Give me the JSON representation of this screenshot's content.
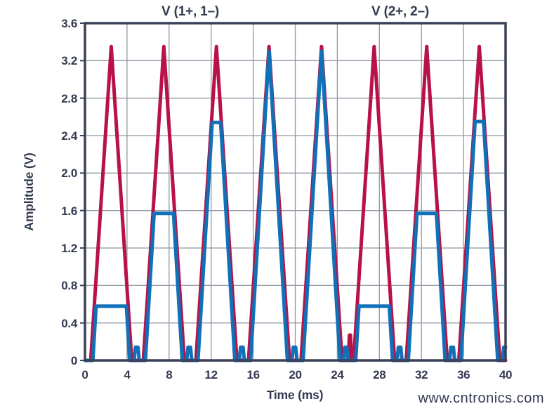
{
  "figure": {
    "watermark": "www.cntronics.com",
    "colors": {
      "background": "#ffffff",
      "text": "#333a52",
      "grid": "#9097a6",
      "border": "#3a4156",
      "watermark": "#c9eab9"
    }
  },
  "chart_data": {
    "type": "line",
    "xlabel": "Time (ms)",
    "ylabel": "Amplitude (V)",
    "xlim": [
      0,
      40
    ],
    "ylim": [
      0,
      3.6
    ],
    "x_tick_values": [
      0,
      4,
      8,
      12,
      16,
      20,
      24,
      28,
      32,
      36,
      40
    ],
    "xticks": [
      "0",
      "4",
      "8",
      "12",
      "16",
      "20",
      "24",
      "28",
      "32",
      "36",
      "40"
    ],
    "yticks": [
      "3.6",
      "3.2",
      "2.8",
      "2.4",
      "2.0",
      "1.6",
      "1.2",
      "0.8",
      "0.4",
      "0"
    ],
    "grid": {
      "x_lines": [
        4,
        8,
        12,
        16,
        20,
        24,
        28,
        32,
        36
      ],
      "y_lines": [
        0.4,
        0.8,
        1.2,
        1.6,
        2.0,
        2.4,
        2.8,
        3.2
      ],
      "y_tick_marks": [
        0,
        0.4,
        0.8,
        1.2,
        1.6,
        2.0,
        2.4,
        2.8,
        3.2,
        3.6
      ]
    },
    "series": [
      {
        "label": "V (1+, 1–)",
        "color": "#b81248",
        "description": "Periodic triangular pulses, period 5 ms, peak 3.35 V, plus a narrow 0.27 V spike near t = 25.2 ms",
        "peak_V": 3.35,
        "period_ms": 5,
        "points": [
          [
            0,
            0
          ],
          [
            0.55,
            0
          ],
          [
            2.5,
            3.35
          ],
          [
            4.45,
            0
          ],
          [
            5.55,
            0
          ],
          [
            7.5,
            3.35
          ],
          [
            9.45,
            0
          ],
          [
            10.55,
            0
          ],
          [
            12.5,
            3.35
          ],
          [
            14.45,
            0
          ],
          [
            15.55,
            0
          ],
          [
            17.5,
            3.35
          ],
          [
            19.45,
            0
          ],
          [
            20.55,
            0
          ],
          [
            22.5,
            3.35
          ],
          [
            24.45,
            0
          ],
          [
            25.05,
            0
          ],
          [
            25.15,
            0.27
          ],
          [
            25.25,
            0.27
          ],
          [
            25.35,
            0
          ],
          [
            25.55,
            0
          ],
          [
            27.5,
            3.35
          ],
          [
            29.45,
            0
          ],
          [
            30.55,
            0
          ],
          [
            32.5,
            3.35
          ],
          [
            34.45,
            0
          ],
          [
            35.55,
            0
          ],
          [
            37.5,
            3.35
          ],
          [
            39.45,
            0
          ],
          [
            40,
            0
          ]
        ]
      },
      {
        "label": "V (2+, 2–)",
        "color": "#1070b8",
        "description": "Clipped version of the triangular pulses; flat-top level steps each 5 ms period, with small 0.14 V residual bumps between pulses",
        "clip_levels_V_per_period": [
          0.58,
          1.57,
          2.54,
          3.3,
          3.3,
          0.58,
          1.57,
          2.55
        ],
        "bump_height_V": 0.14,
        "points": [
          [
            0,
            0
          ],
          [
            0.75,
            0
          ],
          [
            1.06,
            0.58
          ],
          [
            3.94,
            0.58
          ],
          [
            4.25,
            0
          ],
          [
            4.68,
            0
          ],
          [
            4.8,
            0.14
          ],
          [
            5.04,
            0.14
          ],
          [
            5.16,
            0
          ],
          [
            5.75,
            0
          ],
          [
            6.58,
            1.57
          ],
          [
            8.42,
            1.57
          ],
          [
            9.25,
            0
          ],
          [
            9.68,
            0
          ],
          [
            9.8,
            0.14
          ],
          [
            10.04,
            0.14
          ],
          [
            10.16,
            0
          ],
          [
            10.75,
            0
          ],
          [
            12.1,
            2.54
          ],
          [
            12.9,
            2.54
          ],
          [
            14.25,
            0
          ],
          [
            14.68,
            0
          ],
          [
            14.8,
            0.14
          ],
          [
            15.04,
            0.14
          ],
          [
            15.16,
            0
          ],
          [
            15.75,
            0
          ],
          [
            17.5,
            3.3
          ],
          [
            19.25,
            0
          ],
          [
            19.68,
            0
          ],
          [
            19.8,
            0.14
          ],
          [
            20.04,
            0.14
          ],
          [
            20.16,
            0
          ],
          [
            20.75,
            0
          ],
          [
            22.5,
            3.3
          ],
          [
            24.25,
            0
          ],
          [
            24.6,
            0
          ],
          [
            24.72,
            0.14
          ],
          [
            24.9,
            0.14
          ],
          [
            25.02,
            0
          ],
          [
            25.75,
            0
          ],
          [
            26.06,
            0.58
          ],
          [
            28.94,
            0.58
          ],
          [
            29.25,
            0
          ],
          [
            29.68,
            0
          ],
          [
            29.8,
            0.14
          ],
          [
            30.04,
            0.14
          ],
          [
            30.16,
            0
          ],
          [
            30.75,
            0
          ],
          [
            31.58,
            1.57
          ],
          [
            33.42,
            1.57
          ],
          [
            34.25,
            0
          ],
          [
            34.68,
            0
          ],
          [
            34.8,
            0.14
          ],
          [
            35.04,
            0.14
          ],
          [
            35.16,
            0
          ],
          [
            35.75,
            0
          ],
          [
            37.1,
            2.55
          ],
          [
            37.9,
            2.55
          ],
          [
            39.25,
            0
          ],
          [
            39.7,
            0
          ],
          [
            39.82,
            0.14
          ],
          [
            40,
            0.14
          ]
        ]
      }
    ]
  }
}
